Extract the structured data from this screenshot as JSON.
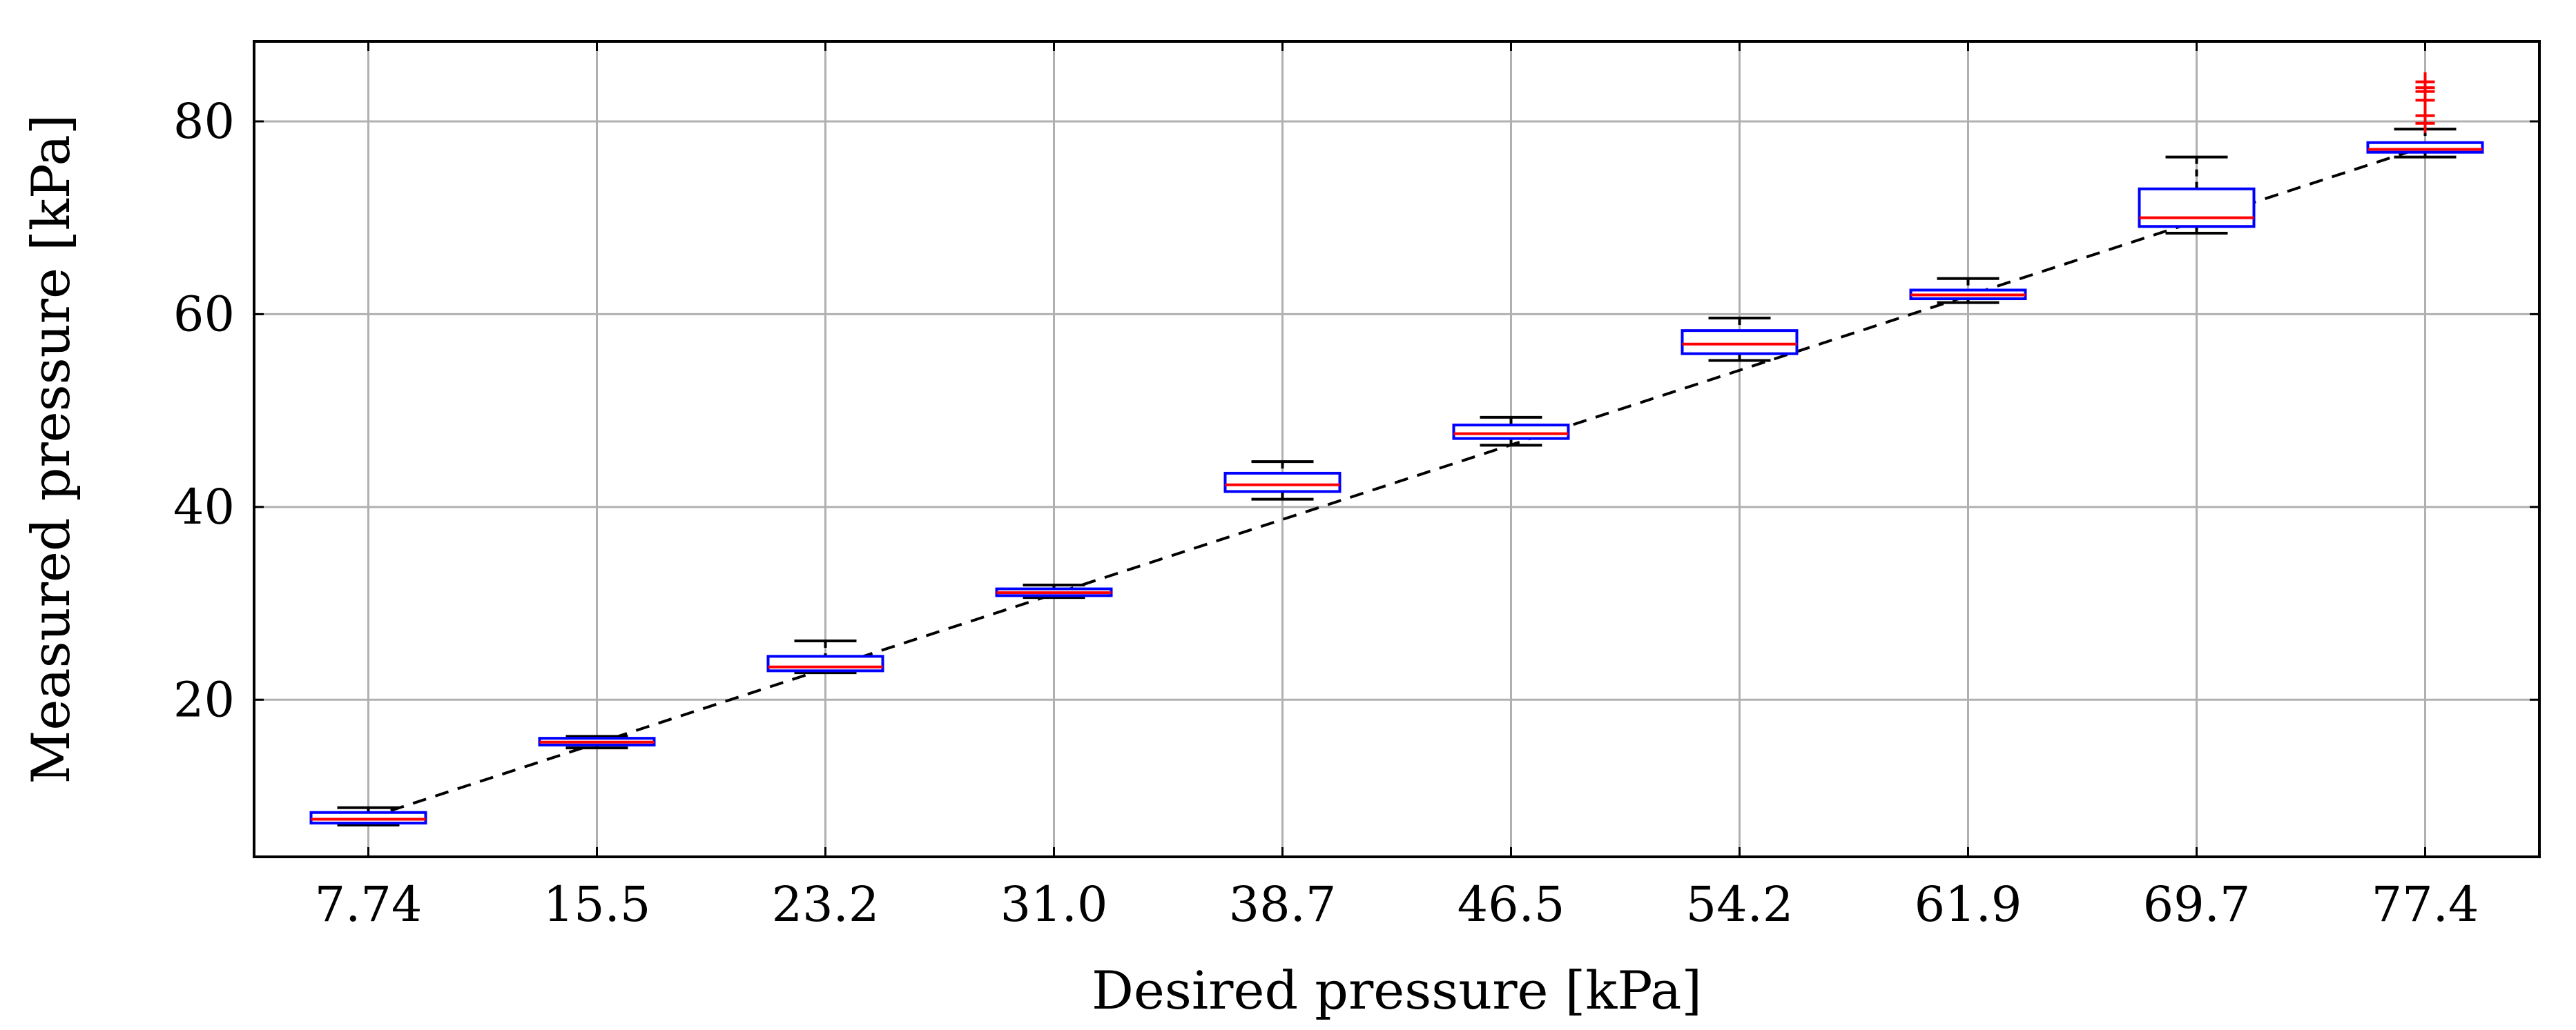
{
  "chart_data": {
    "type": "box",
    "xlabel": "Desired pressure [kPa]",
    "ylabel": "Measured pressure [kPa]",
    "ylim": [
      3.7,
      88.3
    ],
    "yticks": [
      20,
      40,
      60,
      80
    ],
    "grid": true,
    "categories": [
      "7.74",
      "15.5",
      "23.2",
      "31.0",
      "38.7",
      "46.5",
      "54.2",
      "61.9",
      "69.7",
      "77.4"
    ],
    "boxes": [
      {
        "category": "7.74",
        "whisker_low": 7.0,
        "q1": 7.2,
        "median": 7.6,
        "q3": 8.3,
        "whisker_high": 8.8,
        "outliers": []
      },
      {
        "category": "15.5",
        "whisker_low": 15.0,
        "q1": 15.3,
        "median": 15.6,
        "q3": 16.0,
        "whisker_high": 16.2,
        "outliers": []
      },
      {
        "category": "23.2",
        "whisker_low": 22.8,
        "q1": 23.0,
        "median": 23.4,
        "q3": 24.5,
        "whisker_high": 26.1,
        "outliers": []
      },
      {
        "category": "31.0",
        "whisker_low": 30.6,
        "q1": 30.8,
        "median": 31.1,
        "q3": 31.5,
        "whisker_high": 31.9,
        "outliers": []
      },
      {
        "category": "38.7",
        "whisker_low": 40.8,
        "q1": 41.6,
        "median": 42.3,
        "q3": 43.5,
        "whisker_high": 44.7,
        "outliers": []
      },
      {
        "category": "46.5",
        "whisker_low": 46.4,
        "q1": 47.1,
        "median": 47.6,
        "q3": 48.5,
        "whisker_high": 49.3,
        "outliers": []
      },
      {
        "category": "54.2",
        "whisker_low": 55.2,
        "q1": 55.9,
        "median": 56.9,
        "q3": 58.3,
        "whisker_high": 59.6,
        "outliers": []
      },
      {
        "category": "61.9",
        "whisker_low": 61.2,
        "q1": 61.6,
        "median": 62.0,
        "q3": 62.5,
        "whisker_high": 63.7,
        "outliers": []
      },
      {
        "category": "69.7",
        "whisker_low": 68.4,
        "q1": 69.1,
        "median": 70.0,
        "q3": 73.0,
        "whisker_high": 76.3,
        "outliers": []
      },
      {
        "category": "77.4",
        "whisker_low": 76.3,
        "q1": 76.8,
        "median": 77.1,
        "q3": 77.8,
        "whisker_high": 79.2,
        "outliers": [
          79.8,
          80.6,
          82.2,
          83.1,
          83.5,
          84.1
        ]
      }
    ],
    "reference_line": {
      "style": "dashed",
      "color": "#000000",
      "from": [
        7.74,
        7.74
      ],
      "to": [
        77.4,
        77.4
      ]
    },
    "colors": {
      "box": "#0000ff",
      "median": "#ff0000",
      "whisker": "#000000",
      "outlier": "#ff0000",
      "grid": "#b0b0b0",
      "axis": "#000000"
    }
  }
}
